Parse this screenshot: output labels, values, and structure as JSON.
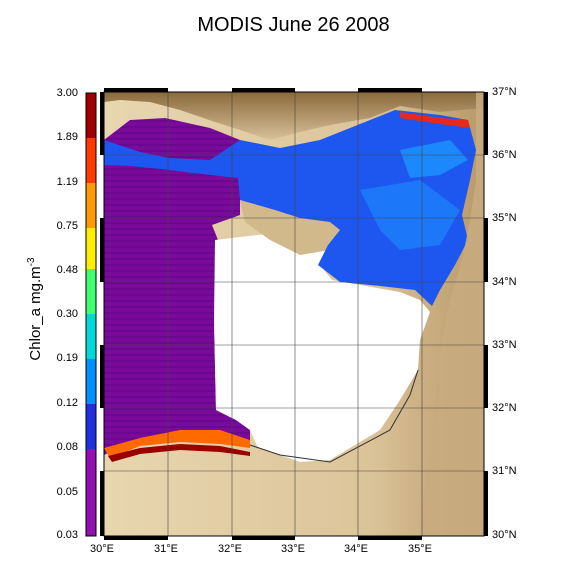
{
  "title": "MODIS June 26 2008",
  "colorbar": {
    "units": "Chlor_a mg.m",
    "units_superscript": "-3",
    "tick_labels": [
      "3.00",
      "1.89",
      "1.19",
      "0.75",
      "0.48",
      "0.30",
      "0.19",
      "0.12",
      "0.08",
      "0.05",
      "0.03"
    ],
    "scale": "log"
  },
  "map": {
    "lon_labels": [
      "30°E",
      "31°E",
      "32°E",
      "33°E",
      "34°E",
      "35°E"
    ],
    "lat_labels": [
      "37°N",
      "36°N",
      "35°N",
      "34°N",
      "33°N",
      "32°N",
      "31°N",
      "30°N"
    ],
    "lon_range": [
      29.85,
      36.0
    ],
    "lat_range": [
      30.0,
      37.0
    ],
    "colors": {
      "land_light": "#e8d6b0",
      "land_mid": "#cdb389",
      "land_dark": "#8a6a3c",
      "cloud_nodata": "#ffffff",
      "chl_low": "#7a0a9a",
      "chl_mid_low": "#1e40e8",
      "chl_mid": "#1aa0ff",
      "chl_high": "#e8281a",
      "chl_max": "#8a0000"
    }
  }
}
